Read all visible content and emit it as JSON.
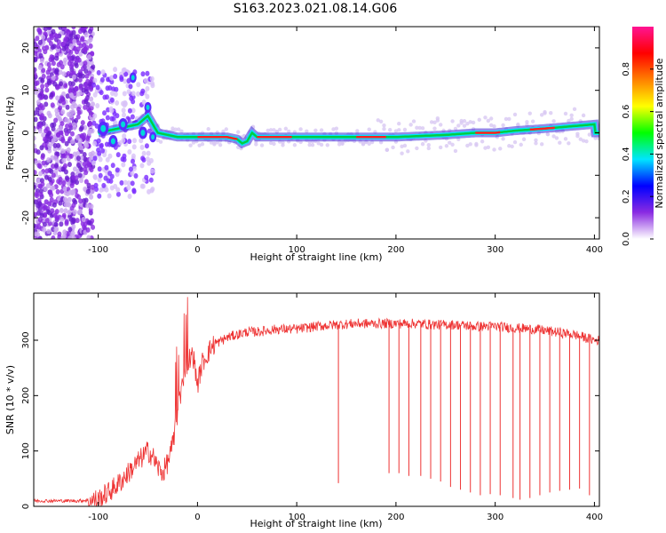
{
  "figure": {
    "title": "S163.2023.021.08.14.G06"
  },
  "chart_data": [
    {
      "type": "heatmap",
      "xlabel": "Height of straight line (km)",
      "ylabel": "Frequency (Hz)",
      "xlim": [
        -165,
        405
      ],
      "ylim": [
        -25,
        25
      ],
      "x_ticks": [
        -100,
        0,
        100,
        200,
        300,
        400
      ],
      "y_ticks": [
        -20,
        -10,
        0,
        10,
        20
      ],
      "colorbar": {
        "label": "Normalized spectral amplitude",
        "range": [
          0,
          1
        ],
        "ticks": [
          "0.0",
          "0.2",
          "0.4",
          "0.6",
          "0.8"
        ],
        "colormap": [
          "#ffffff",
          "#8a2be2",
          "#0000ff",
          "#00e5ff",
          "#00ff00",
          "#ffff00",
          "#ff8000",
          "#ff0000",
          "#ff1493"
        ]
      },
      "ridge": {
        "x": [
          -100,
          -80,
          -60,
          -50,
          -40,
          -20,
          0,
          30,
          40,
          45,
          50,
          55,
          60,
          80,
          100,
          150,
          200,
          250,
          280,
          300,
          320,
          350,
          400
        ],
        "frequency": [
          0,
          1,
          2,
          4,
          0,
          -1,
          -1,
          -1,
          -1.5,
          -2.5,
          -2,
          0,
          -1,
          -1,
          -1,
          -1,
          -1,
          -0.5,
          0,
          0,
          0.5,
          1,
          2
        ]
      }
    },
    {
      "type": "line",
      "xlabel": "Height of straight line (km)",
      "ylabel": "SNR (10 * v/v)",
      "xlim": [
        -165,
        405
      ],
      "ylim": [
        0,
        385
      ],
      "x_ticks": [
        -100,
        0,
        100,
        200,
        300,
        400
      ],
      "y_ticks": [
        0,
        100,
        200,
        300
      ],
      "grid": false,
      "series": [
        {
          "color": "#ee3333",
          "x": [
            -165,
            -140,
            -120,
            -100,
            -90,
            -80,
            -70,
            -60,
            -50,
            -45,
            -40,
            -35,
            -30,
            -25,
            -20,
            -15,
            -10,
            -5,
            0,
            5,
            10,
            15,
            20,
            25,
            30,
            40,
            50,
            60,
            80,
            100,
            120,
            140,
            160,
            180,
            200,
            220,
            240,
            260,
            280,
            300,
            320,
            340,
            360,
            380,
            400,
            405
          ],
          "values": [
            10,
            10,
            10,
            12,
            25,
            40,
            60,
            80,
            100,
            90,
            70,
            60,
            80,
            110,
            170,
            220,
            260,
            280,
            220,
            260,
            275,
            290,
            295,
            300,
            305,
            310,
            315,
            315,
            320,
            320,
            325,
            328,
            330,
            330,
            330,
            330,
            328,
            328,
            325,
            325,
            322,
            320,
            315,
            310,
            300,
            300
          ]
        }
      ],
      "dropouts": [
        {
          "x": 142,
          "to": 42
        },
        {
          "x": 193,
          "to": 60
        },
        {
          "x": 203,
          "to": 60
        },
        {
          "x": 213,
          "to": 55
        },
        {
          "x": 225,
          "to": 55
        },
        {
          "x": 235,
          "to": 50
        },
        {
          "x": 245,
          "to": 45
        },
        {
          "x": 255,
          "to": 35
        },
        {
          "x": 265,
          "to": 30
        },
        {
          "x": 275,
          "to": 25
        },
        {
          "x": 285,
          "to": 20
        },
        {
          "x": 295,
          "to": 22
        },
        {
          "x": 305,
          "to": 20
        },
        {
          "x": 318,
          "to": 15
        },
        {
          "x": 325,
          "to": 12
        },
        {
          "x": 335,
          "to": 15
        },
        {
          "x": 345,
          "to": 20
        },
        {
          "x": 355,
          "to": 25
        },
        {
          "x": 365,
          "to": 28
        },
        {
          "x": 375,
          "to": 30
        },
        {
          "x": 385,
          "to": 32
        },
        {
          "x": 395,
          "to": 20
        }
      ]
    }
  ]
}
